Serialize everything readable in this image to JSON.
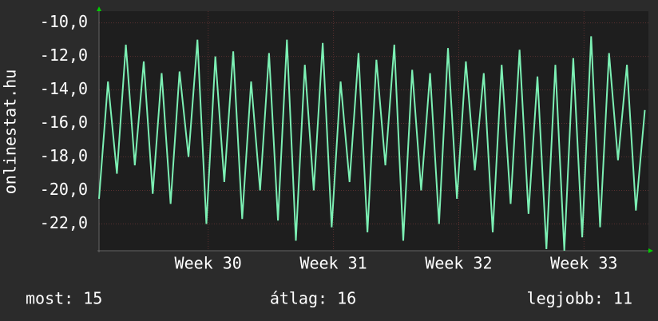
{
  "chart_data": {
    "type": "line",
    "y_label": "onlinestat.hu",
    "x": [
      0,
      0.5,
      1,
      1.5,
      2,
      2.5,
      3,
      3.5,
      4,
      4.5,
      5,
      5.5,
      6,
      6.5,
      7,
      7.5,
      8,
      8.5,
      9,
      9.5,
      10,
      10.5,
      11,
      11.5,
      12,
      12.5,
      13,
      13.5,
      14,
      14.5,
      15,
      15.5,
      16,
      16.5,
      17,
      17.5,
      18,
      18.5,
      19,
      19.5,
      20,
      20.5,
      21,
      21.5,
      22,
      22.5,
      23,
      23.5,
      24,
      24.5,
      25,
      25.5,
      26,
      26.5,
      27,
      27.5,
      28,
      28.5,
      29,
      29.5,
      30,
      30.5
    ],
    "series": [
      {
        "color": "#7cf0b4",
        "values": [
          -20.5,
          -13.5,
          -19,
          -11.3,
          -18.5,
          -12.3,
          -20.2,
          -13,
          -20.8,
          -12.9,
          -18,
          -11,
          -22,
          -12,
          -19.5,
          -11.7,
          -21.7,
          -13.5,
          -20,
          -11.8,
          -21.8,
          -11,
          -23,
          -12.5,
          -20,
          -11.2,
          -22.2,
          -13.5,
          -19.5,
          -11.8,
          -22.5,
          -12.2,
          -18.5,
          -11.3,
          -23,
          -12.8,
          -20,
          -13,
          -22,
          -11.5,
          -20.5,
          -12.3,
          -18.8,
          -13,
          -22.5,
          -12.5,
          -20.8,
          -11.6,
          -21.4,
          -13.2,
          -23.5,
          -12.5,
          -23.6,
          -12.1,
          -22.8,
          -10.8,
          -22.2,
          -11.8,
          -18.2,
          -12.5,
          -21.2,
          -15.2
        ]
      }
    ],
    "xlim": [
      0,
      30.7
    ],
    "xticks": [
      {
        "value": 6.1,
        "label": "Week 30"
      },
      {
        "value": 13.1,
        "label": "Week 31"
      },
      {
        "value": 20.1,
        "label": "Week 32"
      },
      {
        "value": 27.1,
        "label": "Week 33"
      }
    ],
    "ylim": [
      -23.6,
      -9.3
    ],
    "yticks": [
      {
        "value": -10,
        "label": "-10,0"
      },
      {
        "value": -12,
        "label": "-12,0"
      },
      {
        "value": -14,
        "label": "-14,0"
      },
      {
        "value": -16,
        "label": "-16,0"
      },
      {
        "value": -18,
        "label": "-18,0"
      },
      {
        "value": -20,
        "label": "-20,0"
      },
      {
        "value": -22,
        "label": "-22,0"
      }
    ],
    "grid": true,
    "footer": [
      "most: 15",
      "átlag: 16",
      "legjobb: 11"
    ]
  }
}
